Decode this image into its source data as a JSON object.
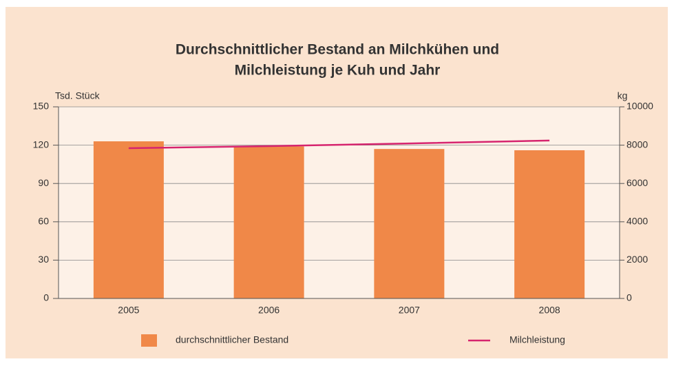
{
  "chart_data": {
    "type": "bar_line",
    "title": [
      "Durchschnittlicher Bestand an Milchkühen und",
      "Milchleistung je Kuh und Jahr"
    ],
    "ylabel": "Tsd. Stück",
    "y2label": "kg",
    "categories": [
      "2005",
      "2006",
      "2007",
      "2008"
    ],
    "series": [
      {
        "name": "durchschnittlicher Bestand",
        "color": "#f08848",
        "type": "bar",
        "values": [
          123,
          119,
          117,
          116
        ]
      },
      {
        "name": "Milchleistung",
        "color": "#d6246e",
        "type": "line",
        "axis": "y2",
        "values": [
          7840,
          7950,
          8090,
          8240
        ]
      }
    ],
    "ylim": [
      0,
      150
    ],
    "yticks": [
      0,
      30,
      60,
      90,
      120,
      150
    ],
    "y2lim": [
      0,
      10000
    ],
    "y2ticks": [
      0,
      2000,
      4000,
      6000,
      8000,
      10000
    ],
    "grid": true,
    "legend": "bottom"
  }
}
